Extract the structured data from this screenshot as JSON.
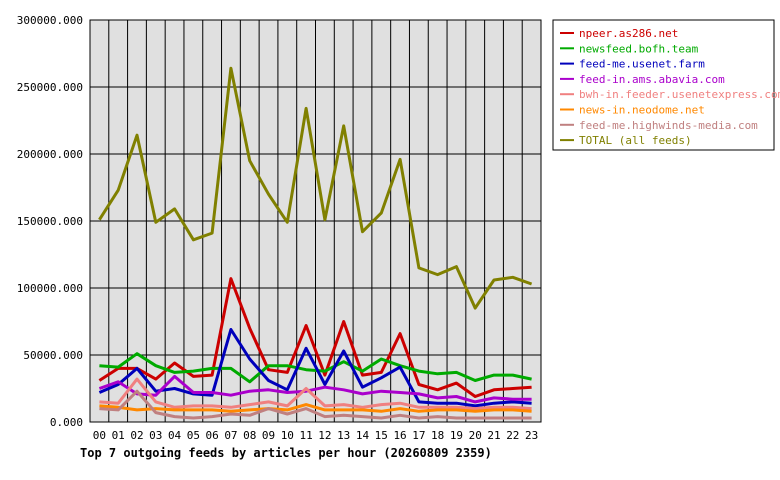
{
  "chart_data": {
    "type": "line",
    "title": "",
    "xlabel": "Top 7 outgoing feeds by articles per hour (20260809 2359)",
    "ylabel": "",
    "categories": [
      "00",
      "01",
      "02",
      "03",
      "04",
      "05",
      "06",
      "07",
      "08",
      "09",
      "10",
      "11",
      "12",
      "13",
      "14",
      "15",
      "16",
      "17",
      "18",
      "19",
      "20",
      "21",
      "22",
      "23"
    ],
    "y_ticks": [
      "0.000",
      "50000.000",
      "100000.000",
      "150000.000",
      "200000.000",
      "250000.000",
      "300000.000"
    ],
    "ylim": [
      0,
      300000
    ],
    "grid": true,
    "legend_position": "right",
    "plot_background": "#e0e0e0",
    "series": [
      {
        "name": "npeer.as286.net",
        "color": "#cc0000",
        "values": [
          31000,
          40000,
          40000,
          32000,
          44000,
          34000,
          35000,
          107000,
          70000,
          39000,
          37000,
          72000,
          35000,
          75000,
          35000,
          37000,
          66000,
          28000,
          24000,
          29000,
          19000,
          24000,
          25000,
          26000
        ]
      },
      {
        "name": "newsfeed.bofh.team",
        "color": "#00aa00",
        "values": [
          42000,
          41000,
          51000,
          42000,
          37000,
          38000,
          40000,
          40000,
          30000,
          42000,
          42000,
          39000,
          38000,
          45000,
          38000,
          47000,
          42000,
          38000,
          36000,
          37000,
          31000,
          35000,
          35000,
          32000
        ]
      },
      {
        "name": "feed-me.usenet.farm",
        "color": "#0000bb",
        "values": [
          22000,
          28000,
          40000,
          23000,
          25000,
          21000,
          20000,
          69000,
          47000,
          31000,
          24000,
          55000,
          28000,
          53000,
          26000,
          33000,
          41000,
          15000,
          14000,
          14000,
          12000,
          14000,
          15000,
          14000
        ]
      },
      {
        "name": "feed-in.ams.abavia.com",
        "color": "#aa00cc",
        "values": [
          25000,
          30000,
          21000,
          20000,
          34000,
          22000,
          22000,
          20000,
          23000,
          24000,
          22000,
          23000,
          26000,
          24000,
          21000,
          23000,
          22000,
          21000,
          18000,
          19000,
          15000,
          18000,
          17000,
          17000
        ]
      },
      {
        "name": "bwh-in.feeder.usenetexpress.com",
        "color": "#f08080",
        "values": [
          15000,
          14000,
          32000,
          15000,
          11000,
          12000,
          12000,
          11000,
          13000,
          15000,
          12000,
          25000,
          12000,
          13000,
          11000,
          13000,
          14000,
          11000,
          11000,
          11000,
          10000,
          11000,
          11000,
          10000
        ]
      },
      {
        "name": "news-in.neodome.net",
        "color": "#ff8800",
        "values": [
          12000,
          11000,
          9000,
          10000,
          9000,
          9000,
          9000,
          8000,
          9000,
          10000,
          9000,
          13000,
          9000,
          9000,
          9000,
          8000,
          10000,
          8000,
          9000,
          9000,
          8000,
          9000,
          9000,
          8000
        ]
      },
      {
        "name": "feed-me.highwinds-media.com",
        "color": "#c08080",
        "values": [
          10000,
          9000,
          23000,
          7000,
          4000,
          3000,
          4000,
          6000,
          5000,
          10000,
          6000,
          10000,
          4000,
          5000,
          4000,
          3000,
          5000,
          3000,
          4000,
          3000,
          3000,
          3000,
          3000,
          3000
        ]
      },
      {
        "name": "TOTAL (all feeds)",
        "color": "#808000",
        "values": [
          151000,
          173000,
          214000,
          149000,
          159000,
          136000,
          141000,
          264000,
          195000,
          170000,
          149000,
          234000,
          151000,
          221000,
          142000,
          156000,
          196000,
          115000,
          110000,
          116000,
          85000,
          106000,
          108000,
          103000
        ]
      }
    ]
  }
}
